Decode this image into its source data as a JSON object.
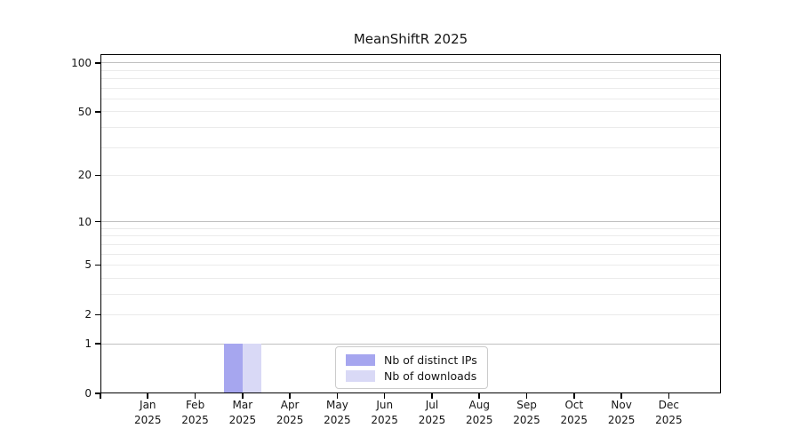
{
  "chart_data": {
    "type": "bar",
    "title": "MeanShiftR 2025",
    "x_categories": [
      "Jan",
      "Feb",
      "Mar",
      "Apr",
      "May",
      "Jun",
      "Jul",
      "Aug",
      "Sep",
      "Oct",
      "Nov",
      "Dec"
    ],
    "x_year": "2025",
    "series": [
      {
        "name": "Nb of distinct IPs",
        "color": "#a6a6ef",
        "values": [
          0,
          0,
          1,
          0,
          0,
          0,
          0,
          0,
          0,
          0,
          0,
          0
        ]
      },
      {
        "name": "Nb of downloads",
        "color": "#d9d9f6",
        "values": [
          0,
          0,
          1,
          0,
          0,
          0,
          0,
          0,
          0,
          0,
          0,
          0
        ]
      }
    ],
    "y_scale": "log1p",
    "ylim": [
      0,
      113
    ],
    "y_ticks": [
      0,
      1,
      2,
      5,
      10,
      20,
      50,
      100
    ],
    "y_gridlines_major": [
      1,
      10,
      100
    ],
    "y_gridlines_minor": [
      2,
      3,
      4,
      5,
      6,
      7,
      8,
      9,
      20,
      30,
      40,
      50,
      60,
      70,
      80,
      90
    ],
    "grid": true,
    "legend_position": "lower center",
    "colors": {
      "axis": "#000000",
      "grid_major": "#c0c0c0",
      "grid_minor": "#ebebeb",
      "text": "#151515",
      "legend_border": "#cccccc",
      "background": "#ffffff"
    }
  }
}
